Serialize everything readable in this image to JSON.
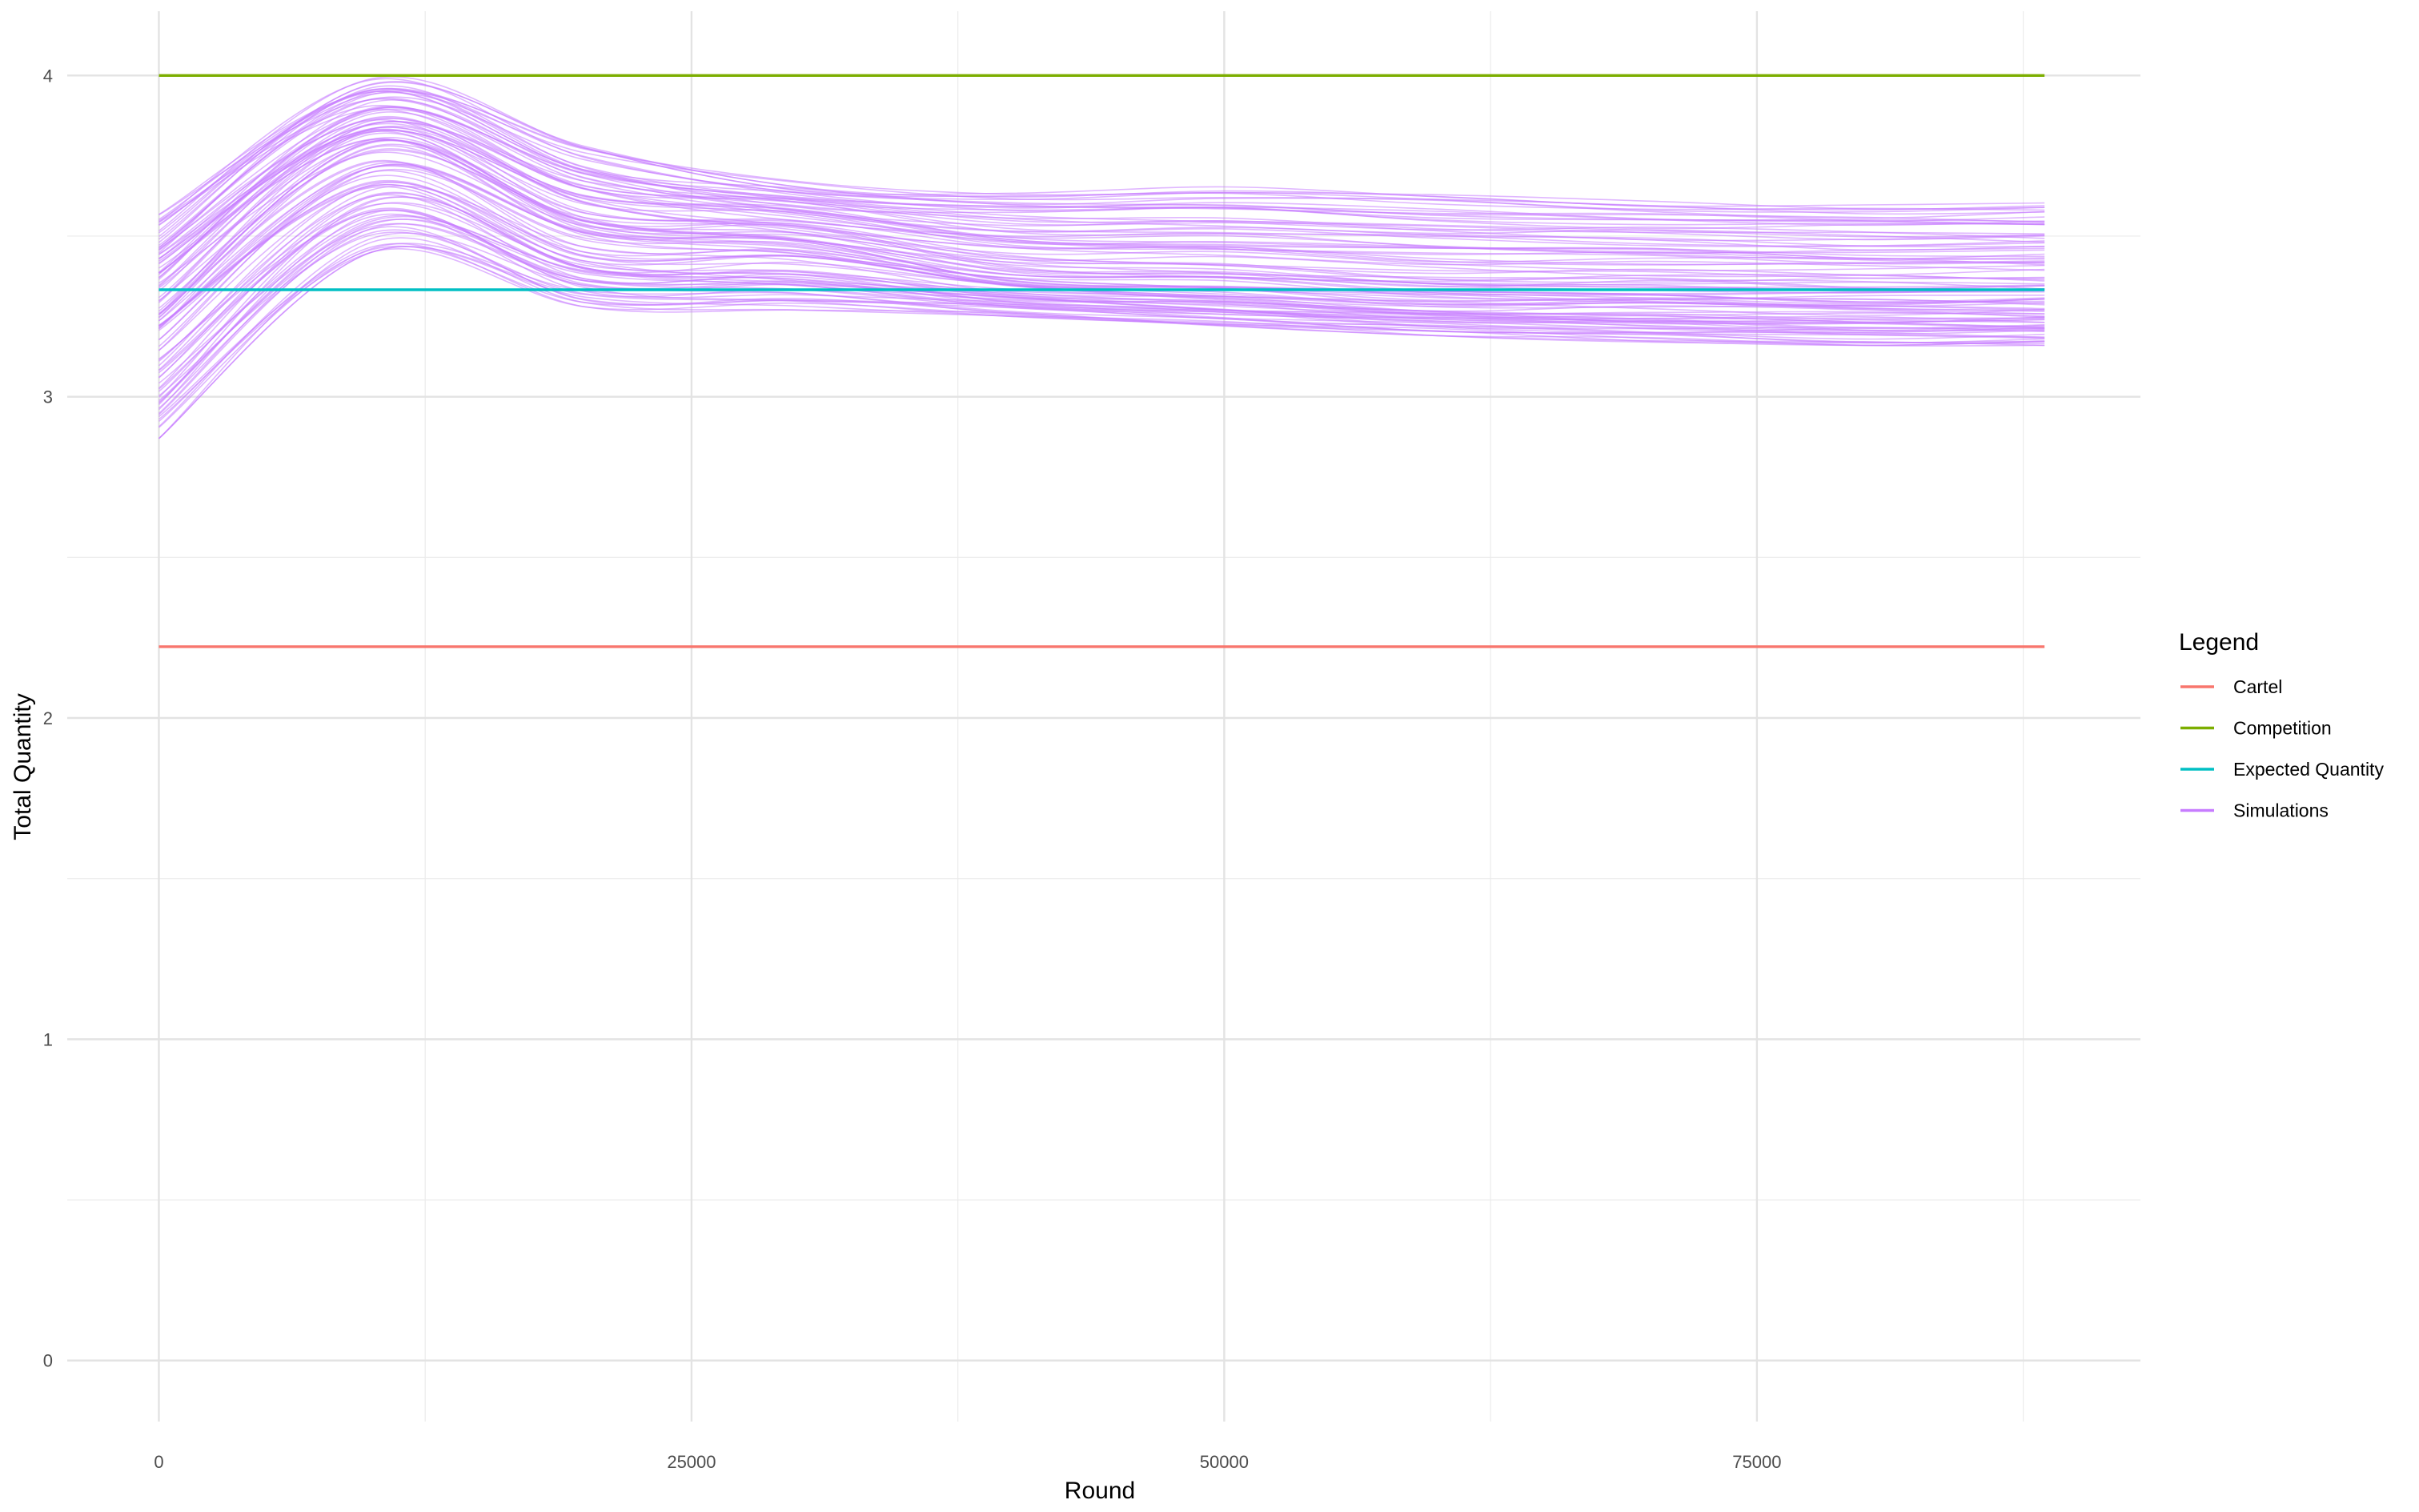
{
  "chart_data": {
    "type": "line",
    "xlabel": "Round",
    "ylabel": "Total Quantity",
    "xlim": [
      -4300,
      93000
    ],
    "ylim": [
      -0.19,
      4.2
    ],
    "x_ticks": [
      0,
      25000,
      50000,
      75000
    ],
    "y_ticks": [
      0,
      1,
      2,
      3,
      4
    ],
    "grid": true,
    "legend_title": "Legend",
    "legend_position": "right",
    "series": [
      {
        "name": "Cartel",
        "color": "#F8766D",
        "x": [
          0,
          88500
        ],
        "values": [
          2.222,
          2.222
        ]
      },
      {
        "name": "Competition",
        "color": "#7CAE00",
        "x": [
          0,
          88500
        ],
        "values": [
          4.0,
          4.0
        ]
      },
      {
        "name": "Expected Quantity",
        "color": "#00BFC4",
        "x": [
          0,
          88500
        ],
        "values": [
          3.333,
          3.333
        ]
      },
      {
        "name": "Simulations",
        "color": "#C77CFF",
        "count": 100,
        "x": [
          0,
          10000,
          20000,
          30000,
          40000,
          50000,
          60000,
          70000,
          80000,
          88500
        ],
        "envelope_low": [
          2.87,
          3.45,
          3.28,
          3.27,
          3.25,
          3.22,
          3.19,
          3.17,
          3.16,
          3.16
        ],
        "envelope_mean": [
          3.28,
          3.77,
          3.52,
          3.49,
          3.38,
          3.36,
          3.33,
          3.33,
          3.32,
          3.32
        ],
        "envelope_high": [
          3.57,
          3.99,
          3.78,
          3.67,
          3.65,
          3.66,
          3.64,
          3.62,
          3.61,
          3.61
        ]
      }
    ]
  }
}
